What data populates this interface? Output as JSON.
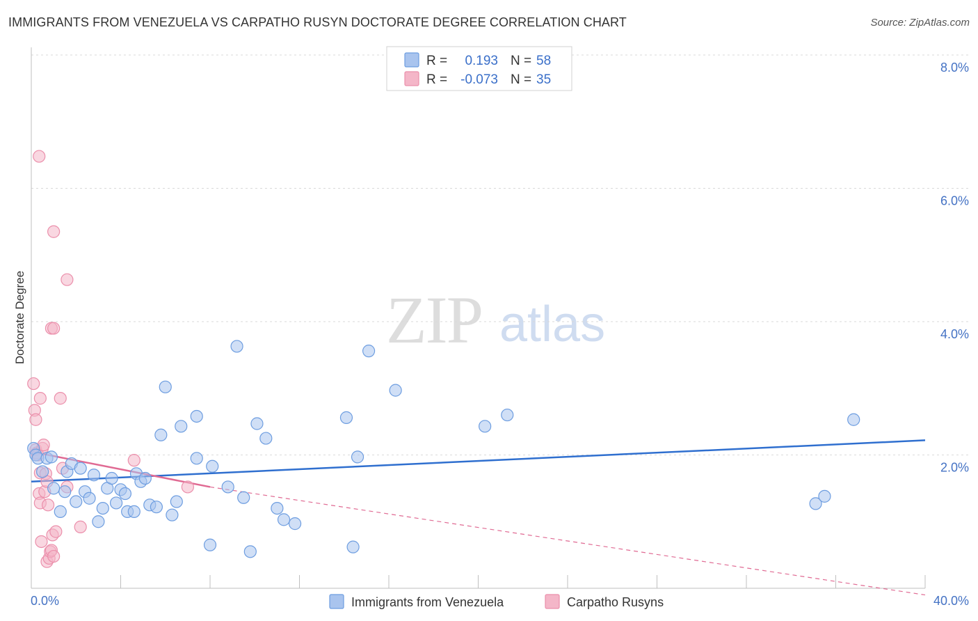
{
  "header": {
    "title": "IMMIGRANTS FROM VENEZUELA VS CARPATHO RUSYN DOCTORATE DEGREE CORRELATION CHART",
    "source": "Source: ZipAtlas.com"
  },
  "watermark": {
    "zip": "ZIP",
    "atlas": "atlas"
  },
  "legend": {
    "r_label": "R =",
    "n_label": "N =",
    "entries": [
      {
        "r": "0.193",
        "n": "58",
        "color": "#a9c4ee"
      },
      {
        "r": "-0.073",
        "n": "35",
        "color": "#f4b6c8"
      }
    ]
  },
  "colors": {
    "blue_fill": "#a9c4ee",
    "blue_stroke": "#6d9de0",
    "blue_line": "#2f6fcf",
    "pink_fill": "#f4b6c8",
    "pink_stroke": "#eb8fab",
    "pink_line": "#e06a93",
    "grid": "#d9d9d9",
    "axis_text": "#4472c4"
  },
  "chart_data": {
    "type": "scatter",
    "title": "IMMIGRANTS FROM VENEZUELA VS CARPATHO RUSYN DOCTORATE DEGREE CORRELATION CHART",
    "xlabel": "",
    "ylabel": "Doctorate Degree",
    "xlim": [
      0,
      40
    ],
    "ylim": [
      0,
      8
    ],
    "x_tick_labels": [
      "0.0%",
      "40.0%"
    ],
    "y_ticks": [
      2,
      4,
      6,
      8
    ],
    "y_tick_labels": [
      "2.0%",
      "4.0%",
      "6.0%",
      "8.0%"
    ],
    "grid": true,
    "legend_position": "top-center",
    "series": [
      {
        "name": "Immigrants from Venezuela",
        "r": 0.193,
        "n": 58,
        "trend": {
          "x": [
            0,
            40
          ],
          "y": [
            1.6,
            2.22
          ],
          "style": "solid"
        },
        "points": [
          [
            0.1,
            2.1
          ],
          [
            0.2,
            2.0
          ],
          [
            0.3,
            1.95
          ],
          [
            0.5,
            1.75
          ],
          [
            0.7,
            1.95
          ],
          [
            0.9,
            1.97
          ],
          [
            1.0,
            1.5
          ],
          [
            1.3,
            1.15
          ],
          [
            1.5,
            1.45
          ],
          [
            1.6,
            1.75
          ],
          [
            1.8,
            1.87
          ],
          [
            2.0,
            1.3
          ],
          [
            2.2,
            1.8
          ],
          [
            2.4,
            1.45
          ],
          [
            2.6,
            1.35
          ],
          [
            2.8,
            1.7
          ],
          [
            3.0,
            1.0
          ],
          [
            3.2,
            1.2
          ],
          [
            3.4,
            1.5
          ],
          [
            3.6,
            1.65
          ],
          [
            3.8,
            1.28
          ],
          [
            4.0,
            1.48
          ],
          [
            4.2,
            1.42
          ],
          [
            4.3,
            1.15
          ],
          [
            4.6,
            1.15
          ],
          [
            4.7,
            1.72
          ],
          [
            4.9,
            1.6
          ],
          [
            5.1,
            1.65
          ],
          [
            5.3,
            1.25
          ],
          [
            5.6,
            1.22
          ],
          [
            5.8,
            2.3
          ],
          [
            6.0,
            3.02
          ],
          [
            6.3,
            1.1
          ],
          [
            6.5,
            1.3
          ],
          [
            6.7,
            2.43
          ],
          [
            7.4,
            2.58
          ],
          [
            7.4,
            1.95
          ],
          [
            8.0,
            0.65
          ],
          [
            8.1,
            1.83
          ],
          [
            8.8,
            1.52
          ],
          [
            9.2,
            3.63
          ],
          [
            9.5,
            1.36
          ],
          [
            9.8,
            0.55
          ],
          [
            10.1,
            2.47
          ],
          [
            10.5,
            2.25
          ],
          [
            11.0,
            1.2
          ],
          [
            11.3,
            1.03
          ],
          [
            11.8,
            0.97
          ],
          [
            14.1,
            2.56
          ],
          [
            14.4,
            0.62
          ],
          [
            14.6,
            1.97
          ],
          [
            15.1,
            3.56
          ],
          [
            16.3,
            2.97
          ],
          [
            20.3,
            2.43
          ],
          [
            21.3,
            2.6
          ],
          [
            35.1,
            1.27
          ],
          [
            35.5,
            1.38
          ],
          [
            36.8,
            2.53
          ]
        ]
      },
      {
        "name": "Carpatho Rusyns",
        "r": -0.073,
        "n": 35,
        "trend": {
          "x": [
            0,
            8.0
          ],
          "y": [
            2.05,
            1.52
          ],
          "style": "solid",
          "dashed_extension_to": [
            40,
            -0.1
          ]
        },
        "points": [
          [
            0.1,
            3.07
          ],
          [
            0.15,
            2.67
          ],
          [
            0.2,
            2.53
          ],
          [
            0.2,
            2.08
          ],
          [
            0.25,
            2.03
          ],
          [
            0.3,
            2.0
          ],
          [
            0.35,
            1.42
          ],
          [
            0.4,
            1.73
          ],
          [
            0.4,
            1.28
          ],
          [
            0.35,
            6.48
          ],
          [
            0.4,
            2.85
          ],
          [
            0.45,
            0.7
          ],
          [
            0.5,
            2.1
          ],
          [
            0.55,
            2.15
          ],
          [
            0.6,
            1.45
          ],
          [
            0.65,
            1.72
          ],
          [
            0.7,
            1.6
          ],
          [
            0.7,
            0.4
          ],
          [
            0.75,
            1.25
          ],
          [
            0.8,
            0.45
          ],
          [
            0.85,
            0.55
          ],
          [
            0.9,
            3.9
          ],
          [
            0.9,
            0.57
          ],
          [
            0.95,
            0.8
          ],
          [
            1.0,
            3.9
          ],
          [
            1.0,
            0.48
          ],
          [
            1.0,
            5.35
          ],
          [
            1.1,
            0.85
          ],
          [
            1.3,
            2.85
          ],
          [
            1.4,
            1.8
          ],
          [
            1.6,
            1.52
          ],
          [
            1.6,
            4.63
          ],
          [
            2.2,
            0.92
          ],
          [
            4.6,
            1.92
          ],
          [
            7.0,
            1.52
          ]
        ]
      }
    ]
  },
  "bottom_legend": [
    {
      "label": "Immigrants from Venezuela"
    },
    {
      "label": "Carpatho Rusyns"
    }
  ]
}
